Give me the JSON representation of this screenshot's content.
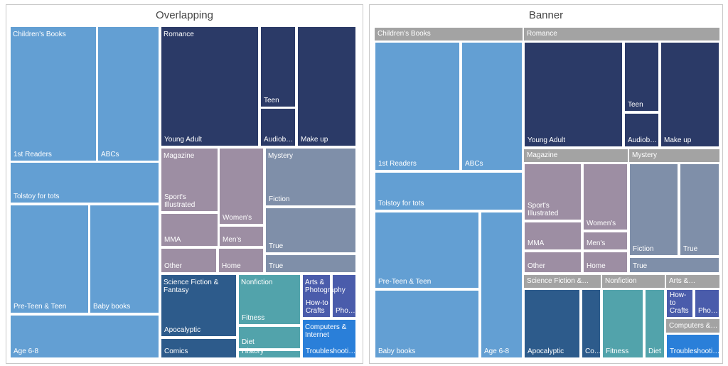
{
  "panels": [
    {
      "title": "Overlapping",
      "groups": [
        {
          "label": "Children's Books",
          "tiles": [
            "1st Readers",
            "ABCs",
            "Tolstoy for tots",
            "Pre-Teen & Teen",
            "Baby books",
            "Age 6-8"
          ]
        },
        {
          "label": "Romance",
          "tiles": [
            "Young Adult",
            "Teen",
            "Audiob…",
            "Make up"
          ]
        },
        {
          "label": "Magazine",
          "tiles": [
            "Sport's Illustrated",
            "Women's",
            "MMA",
            "Men's",
            "Other",
            "Home"
          ]
        },
        {
          "label": "Mystery",
          "tiles": [
            "Fiction",
            "True",
            "True"
          ]
        },
        {
          "label": "Science Fiction & Fantasy",
          "tiles": [
            "Apocalyptic",
            "Comics"
          ]
        },
        {
          "label": "Nonfiction",
          "tiles": [
            "Fitness",
            "Diet",
            "History"
          ]
        },
        {
          "label": "Arts & Photography",
          "tiles": [
            "How-to Crafts",
            "Pho…"
          ]
        },
        {
          "label": "Computers & Internet",
          "tiles": [
            "Troubleshooti…"
          ]
        }
      ]
    },
    {
      "title": "Banner",
      "groups": [
        {
          "label": "Children's Books",
          "tiles": [
            "1st Readers",
            "ABCs",
            "Tolstoy for tots",
            "Pre-Teen & Teen",
            "Age 6-8",
            "Baby books"
          ]
        },
        {
          "label": "Romance",
          "tiles": [
            "Young Adult",
            "Teen",
            "Audiob…",
            "Make up"
          ]
        },
        {
          "label": "Magazine",
          "tiles": [
            "Sport's Illustrated",
            "Women's",
            "MMA",
            "Men's",
            "Other",
            "Home"
          ]
        },
        {
          "label": "Mystery",
          "tiles": [
            "Fiction",
            "True",
            "True"
          ]
        },
        {
          "label": "Science Fiction &…",
          "tiles": [
            "Apocalyptic",
            "Co…"
          ]
        },
        {
          "label": "Nonfiction",
          "tiles": [
            "Fitness",
            "Diet"
          ]
        },
        {
          "label": "Arts &…",
          "tiles": [
            "How-to Crafts",
            "Pho…"
          ]
        },
        {
          "label": "Computers &…",
          "tiles": [
            "Troubleshooti…"
          ]
        }
      ]
    }
  ]
}
